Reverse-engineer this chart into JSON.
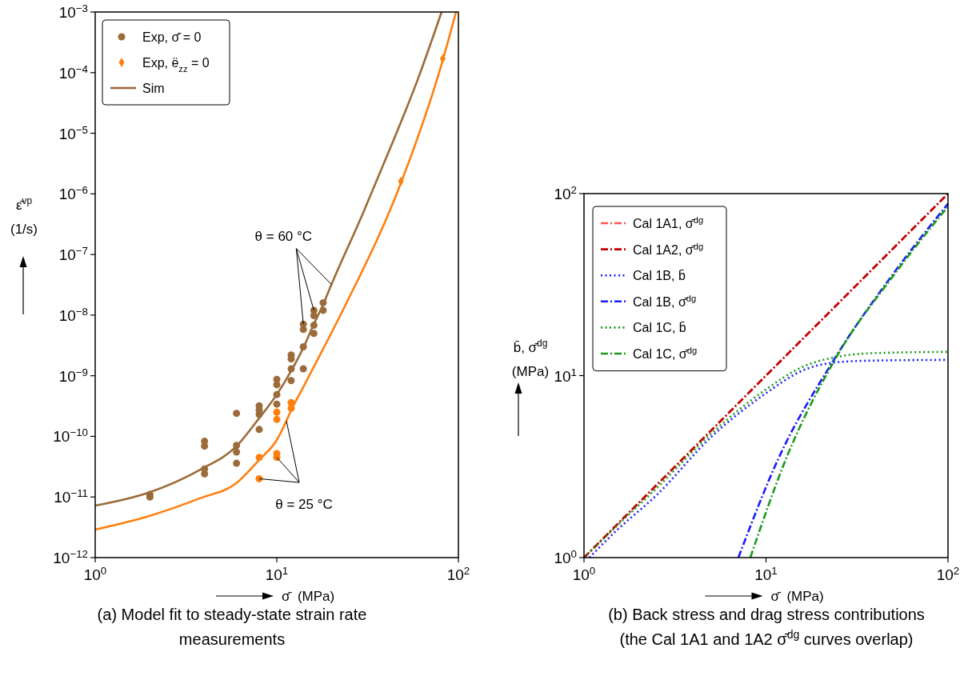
{
  "chart_data": [
    {
      "type": "scatter",
      "title": "(a) Model fit to steady-state strain rate measurements",
      "xlabel": "σ̄  (MPa)",
      "ylabel": "ε̄̇$^{vp}$\n(1/s)",
      "log": "xy",
      "grid": false,
      "legend": "top left",
      "xlim": [
        1,
        100
      ],
      "ylim": [
        1e-12,
        0.001
      ],
      "xticks": [
        {
          "value": 1,
          "label": "10$^{0}$"
        },
        {
          "value": 10,
          "label": "10$^{1}$"
        },
        {
          "value": 100,
          "label": "10$^{2}$"
        }
      ],
      "yticks": [
        {
          "value": 1e-12,
          "label": "10$^{−12}$"
        },
        {
          "value": 1e-11,
          "label": "10$^{−11}$"
        },
        {
          "value": 1e-10,
          "label": "10$^{−10}$"
        },
        {
          "value": 1e-09,
          "label": "10$^{−9}$"
        },
        {
          "value": 1e-08,
          "label": "10$^{−8}$"
        },
        {
          "value": 1e-07,
          "label": "10$^{−7}$"
        },
        {
          "value": 1e-06,
          "label": "10$^{−6}$"
        },
        {
          "value": 1e-05,
          "label": "10$^{−5}$"
        },
        {
          "value": 0.0001,
          "label": "10$^{−4}$"
        },
        {
          "value": 0.001,
          "label": "10$^{−3}$"
        }
      ],
      "annotations": [
        {
          "text": "θ = 60 °C",
          "x": 20,
          "y": 3.2e-08
        },
        {
          "text": "θ = 25 °C",
          "x": 11.3,
          "y": 1.8e-10
        }
      ],
      "series": [
        {
          "name": "Exp, σ̄̇ = 0",
          "marker": "circle",
          "color": "#9c6b3a",
          "x": [
            2,
            2,
            4,
            4,
            4,
            4,
            6,
            6,
            6,
            6,
            8,
            8,
            8,
            8,
            10,
            10,
            10,
            10,
            12,
            12,
            12,
            12,
            14,
            14,
            14,
            14,
            16,
            16,
            16,
            16,
            18,
            18
          ],
          "values": [
            1.1e-11,
            1e-11,
            8.3e-11,
            6.9e-11,
            2.9e-11,
            2.4e-11,
            2.4e-10,
            7.1e-11,
            5.5e-11,
            3.6e-11,
            3.2e-10,
            2.7e-10,
            2.3e-10,
            1.3e-10,
            8.7e-10,
            7.1e-10,
            4.9e-10,
            3.4e-10,
            2.2e-09,
            1.9e-09,
            1.3e-09,
            8.3e-10,
            7.1e-09,
            5.8e-09,
            3e-09,
            1.3e-09,
            1.2e-08,
            9.8e-09,
            6.8e-09,
            5e-09,
            1.6e-08,
            1.2e-08
          ]
        },
        {
          "marker": "circle",
          "color": "#ff7f0e",
          "x": [
            8,
            8,
            10,
            10,
            10,
            10,
            12,
            12
          ],
          "values": [
            4.5e-11,
            2e-11,
            2.5e-10,
            1.9e-10,
            5.2e-11,
            4.5e-11,
            3.6e-10,
            2.9e-10
          ]
        },
        {
          "name": "Exp, ë$_{zz}$ = 0",
          "marker": "diamond",
          "color": "#ff7f0e",
          "x": [
            48.2,
            82
          ],
          "values": [
            1.6e-06,
            0.00017
          ]
        },
        {
          "name": "Sim",
          "type": "line",
          "marker": "none",
          "line_style": "solid",
          "color": "#9c6b3a",
          "x": [
            1,
            2,
            3.77,
            6,
            8,
            10,
            12,
            14,
            16,
            18,
            20,
            30,
            41.4,
            60,
            80.8
          ],
          "values": [
            7.2e-12,
            1.2e-11,
            2.8e-11,
            6.9e-11,
            2e-10,
            4.9e-10,
            1.2e-09,
            2.9e-09,
            7.1e-09,
            1.5e-08,
            3.2e-08,
            5e-07,
            5e-06,
            8e-05,
            0.001
          ]
        },
        {
          "type": "line",
          "marker": "none",
          "line_style": "solid",
          "color": "#ff7f0e",
          "x": [
            1,
            2,
            3.77,
            6,
            8,
            10,
            11.3,
            12,
            14,
            17.8,
            23.4,
            48.2,
            82,
            97
          ],
          "values": [
            2.9e-12,
            4.9e-12,
            9.5e-12,
            1.7e-11,
            4.1e-11,
            8.7e-11,
            1.8e-10,
            2.7e-10,
            6.5e-10,
            2.6e-09,
            1.3e-08,
            1.5e-06,
            0.00016,
            0.001
          ]
        }
      ]
    },
    {
      "type": "line",
      "title": "(b) Back stress and drag stress contributions (the Cal 1A1 and 1A2 σ̄$^{dg}$ curves overlap)",
      "xlabel": "σ̄  (MPa)",
      "ylabel": "b̄, σ̄$^{dg}$\n(MPa)",
      "log": "xy",
      "grid": false,
      "legend": "top left",
      "marker": "none",
      "xlim": [
        1,
        100
      ],
      "ylim": [
        1,
        100
      ],
      "xticks": [
        {
          "value": 1,
          "label": "10$^{0}$"
        },
        {
          "value": 10,
          "label": "10$^{1}$"
        },
        {
          "value": 100,
          "label": "10$^{2}$"
        }
      ],
      "yticks": [
        {
          "value": 1,
          "label": "10$^{0}$"
        },
        {
          "value": 10,
          "label": "10$^{1}$"
        },
        {
          "value": 100,
          "label": "10$^{2}$"
        }
      ],
      "series": [
        {
          "name": "Cal 1A1, σ̄$^{dg}$",
          "line_style": "dashdot",
          "color": "#ff5555",
          "x": [
            1,
            3,
            10,
            30,
            100
          ],
          "values": [
            1,
            3,
            10,
            30,
            100
          ]
        },
        {
          "name": "Cal 1A2, σ̄$^{dg}$",
          "line_style": "dashdot",
          "color": "#c00000",
          "x": [
            1,
            3,
            10,
            30,
            100
          ],
          "values": [
            1,
            3,
            10,
            30,
            100
          ]
        },
        {
          "name": "Cal 1B, b̄",
          "line_style": "dotted",
          "color": "#1a1aff",
          "x": [
            1.07,
            1.5,
            2.5,
            5,
            10,
            16,
            26,
            40,
            100
          ],
          "values": [
            1.0,
            1.4,
            2.2,
            4.6,
            8.0,
            10.7,
            11.9,
            12.1,
            12.2
          ]
        },
        {
          "name": "Cal 1B, σ̄$^{dg}$",
          "line_style": "dashdot",
          "color": "#1a1aff",
          "x": [
            7.05,
            11.7,
            23.1,
            51.8,
            100
          ],
          "values": [
            1,
            3.5,
            11.8,
            38,
            88
          ]
        },
        {
          "name": "Cal 1C, b̄",
          "line_style": "dotted",
          "color": "#1a9a1a",
          "x": [
            1,
            1.5,
            2.5,
            5,
            10,
            16,
            26,
            40,
            100
          ],
          "values": [
            1.0,
            1.48,
            2.4,
            4.8,
            8.4,
            11.2,
            12.8,
            13.3,
            13.5
          ]
        },
        {
          "name": "Cal 1C, σ̄$^{dg}$",
          "line_style": "dashdot",
          "color": "#1a9a1a",
          "x": [
            8.2,
            12.9,
            24.2,
            51.8,
            100
          ],
          "values": [
            1,
            3.5,
            12.5,
            37,
            85
          ]
        }
      ]
    }
  ]
}
